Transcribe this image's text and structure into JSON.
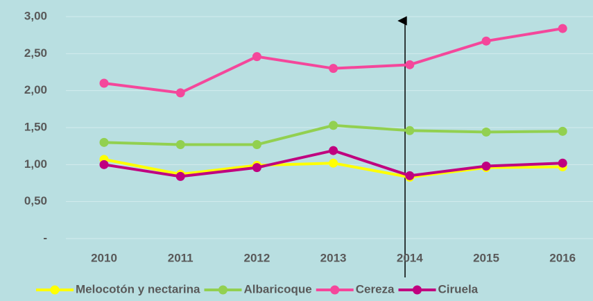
{
  "chart_data": {
    "type": "line",
    "categories": [
      "2010",
      "2011",
      "2012",
      "2013",
      "2014",
      "2015",
      "2016"
    ],
    "series": [
      {
        "name": "Melocotón y nectarina",
        "color": "#ffff00",
        "values": [
          1.07,
          0.87,
          0.99,
          1.02,
          0.83,
          0.96,
          0.97
        ]
      },
      {
        "name": "Albaricoque",
        "color": "#92d050",
        "values": [
          1.3,
          1.27,
          1.27,
          1.53,
          1.46,
          1.44,
          1.45
        ]
      },
      {
        "name": "Cereza",
        "color": "#f4479b",
        "values": [
          2.1,
          1.97,
          2.46,
          2.3,
          2.35,
          2.67,
          2.84
        ]
      },
      {
        "name": "Ciruela",
        "color": "#c0007f",
        "values": [
          1.0,
          0.84,
          0.96,
          1.19,
          0.85,
          0.98,
          1.02
        ]
      }
    ],
    "ylim": [
      0,
      3
    ],
    "yticks": [
      {
        "value": 0,
        "label": "-"
      },
      {
        "value": 0.5,
        "label": "0,50"
      },
      {
        "value": 1,
        "label": "1,00"
      },
      {
        "value": 1.5,
        "label": "1,50"
      },
      {
        "value": 2,
        "label": "2,00"
      },
      {
        "value": 2.5,
        "label": "2,50"
      },
      {
        "value": 3,
        "label": "3,00"
      }
    ],
    "grid": true,
    "legend": "bottom"
  }
}
